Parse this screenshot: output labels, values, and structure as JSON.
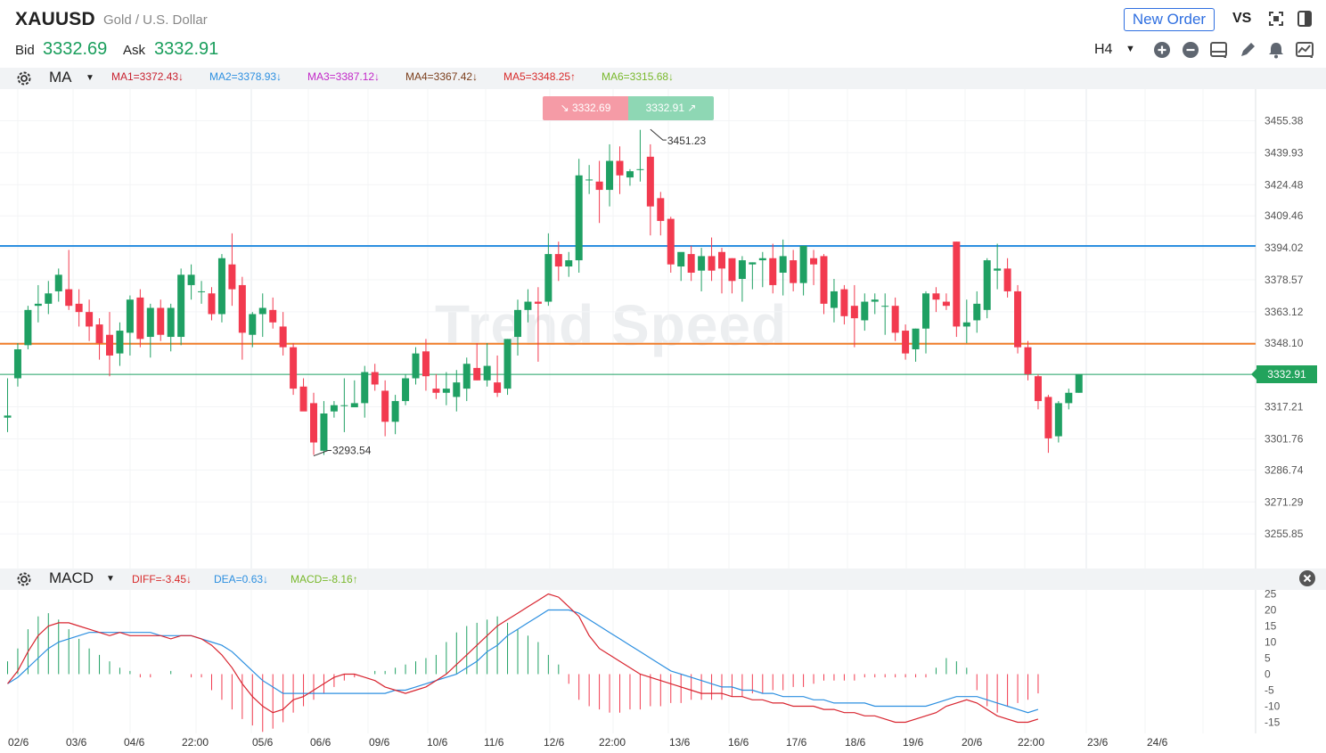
{
  "header": {
    "symbol": "XAUUSD",
    "description": "Gold / U.S. Dollar",
    "bid_label": "Bid",
    "bid_value": "3332.69",
    "ask_label": "Ask",
    "ask_value": "3332.91",
    "new_order_label": "New Order",
    "vs_label": "VS",
    "timeframe": "H4",
    "icons": [
      "fullscreen-icon",
      "layout-icon",
      "zoom-in-icon",
      "zoom-out-icon",
      "chart-type-icon",
      "draw-pencil-icon",
      "alert-bell-icon",
      "indicator-icon"
    ]
  },
  "ma_bar": {
    "name": "MA",
    "items": [
      {
        "label": "MA1=3372.43↓",
        "color": "#c8202e"
      },
      {
        "label": "MA2=3378.93↓",
        "color": "#2c8fe0"
      },
      {
        "label": "MA3=3387.12↓",
        "color": "#c228c8"
      },
      {
        "label": "MA4=3367.42↓",
        "color": "#7a3d1a"
      },
      {
        "label": "MA5=3348.25↑",
        "color": "#d82a2a"
      },
      {
        "label": "MA6=3315.68↓",
        "color": "#78b82a"
      }
    ]
  },
  "macd_bar": {
    "name": "MACD",
    "items": [
      {
        "label": "DIFF=-3.45↓",
        "color": "#d82a2a"
      },
      {
        "label": "DEA=0.63↓",
        "color": "#2c8fe0"
      },
      {
        "label": "MACD=-8.16↑",
        "color": "#78b82a"
      }
    ]
  },
  "badges": {
    "bid": "↘ 3332.69",
    "ask": "3332.91 ↗"
  },
  "watermark": "Trend Speed",
  "price_tag": "3332.91",
  "annotations": {
    "high": "3451.23",
    "low": "3293.54"
  },
  "colors": {
    "up": "#1fa063",
    "down": "#f23a4f",
    "blue_line": "#2c8fe0",
    "orange_line": "#f07d2a",
    "diff_line": "#d8242f",
    "dea_line": "#2c8fe0"
  },
  "chart_data": [
    {
      "type": "candlestick",
      "title": "XAUUSD H4",
      "y_ticks": [
        "3455.38",
        "3439.93",
        "3424.48",
        "3409.46",
        "3394.02",
        "3378.57",
        "3363.12",
        "3348.10",
        "3332.91",
        "3317.21",
        "3301.76",
        "3286.74",
        "3271.29",
        "3255.85"
      ],
      "x_ticks": [
        "02/6",
        "03/6",
        "04/6",
        "22:00",
        "05/6",
        "06/6",
        "09/6",
        "10/6",
        "11/6",
        "12/6",
        "22:00",
        "13/6",
        "16/6",
        "17/6",
        "18/6",
        "19/6",
        "20/6",
        "22:00",
        "23/6",
        "24/6"
      ],
      "ylim": [
        3250,
        3465
      ],
      "horizontal_lines": [
        {
          "value": 3394.9,
          "color": "#2c8fe0"
        },
        {
          "value": 3347.7,
          "color": "#f07d2a"
        },
        {
          "value": 3332.91,
          "color": "#1fa063"
        }
      ],
      "ohlc": [
        [
          3312,
          3331,
          3305,
          3313
        ],
        [
          3331,
          3348,
          3327,
          3345
        ],
        [
          3347,
          3366,
          3345,
          3364
        ],
        [
          3366,
          3376,
          3358,
          3367
        ],
        [
          3367,
          3378,
          3362,
          3372
        ],
        [
          3373,
          3384,
          3368,
          3381
        ],
        [
          3374,
          3393,
          3364,
          3366
        ],
        [
          3367,
          3374,
          3356,
          3363
        ],
        [
          3363,
          3369,
          3349,
          3356
        ],
        [
          3357,
          3360,
          3340,
          3348
        ],
        [
          3352,
          3363,
          3332,
          3342
        ],
        [
          3343,
          3358,
          3337,
          3354
        ],
        [
          3353,
          3371,
          3342,
          3369
        ],
        [
          3370,
          3374,
          3346,
          3350
        ],
        [
          3351,
          3367,
          3341,
          3365
        ],
        [
          3365,
          3369,
          3349,
          3352
        ],
        [
          3351,
          3367,
          3344,
          3365
        ],
        [
          3351,
          3384,
          3347,
          3381
        ],
        [
          3376,
          3386,
          3369,
          3381
        ],
        [
          3373,
          3378,
          3367,
          3373
        ],
        [
          3372,
          3375,
          3359,
          3362
        ],
        [
          3362,
          3391,
          3358,
          3389
        ],
        [
          3386,
          3401,
          3366,
          3374
        ],
        [
          3376,
          3380,
          3340,
          3353
        ],
        [
          3352,
          3363,
          3346,
          3362
        ],
        [
          3362,
          3372,
          3351,
          3365
        ],
        [
          3364,
          3370,
          3355,
          3358
        ],
        [
          3356,
          3363,
          3342,
          3346
        ],
        [
          3346,
          3348,
          3323,
          3326
        ],
        [
          3327,
          3331,
          3316,
          3315
        ],
        [
          3319,
          3324,
          3294,
          3300
        ],
        [
          3296,
          3320,
          3294,
          3314
        ],
        [
          3315,
          3320,
          3312,
          3318
        ],
        [
          3318,
          3331,
          3305,
          3318
        ],
        [
          3317,
          3330,
          3319,
          3319
        ],
        [
          3319,
          3337,
          3312,
          3334
        ],
        [
          3334,
          3338,
          3325,
          3328
        ],
        [
          3325,
          3330,
          3303,
          3310
        ],
        [
          3310,
          3323,
          3304,
          3320
        ],
        [
          3320,
          3333,
          3318,
          3331
        ],
        [
          3331,
          3346,
          3328,
          3343
        ],
        [
          3344,
          3350,
          3325,
          3332
        ],
        [
          3326,
          3333,
          3321,
          3324
        ],
        [
          3324,
          3334,
          3318,
          3326
        ],
        [
          3322,
          3335,
          3315,
          3329
        ],
        [
          3326,
          3341,
          3320,
          3338
        ],
        [
          3336,
          3348,
          3330,
          3330
        ],
        [
          3330,
          3348,
          3327,
          3337
        ],
        [
          3329,
          3342,
          3322,
          3324
        ],
        [
          3326,
          3350,
          3323,
          3350
        ],
        [
          3351,
          3369,
          3342,
          3364
        ],
        [
          3364,
          3374,
          3358,
          3368
        ],
        [
          3368,
          3375,
          3339,
          3367
        ],
        [
          3368,
          3401,
          3366,
          3391
        ],
        [
          3391,
          3397,
          3378,
          3385
        ],
        [
          3385,
          3392,
          3380,
          3388
        ],
        [
          3388,
          3437,
          3382,
          3429
        ],
        [
          3427,
          3434,
          3420,
          3427
        ],
        [
          3426,
          3436,
          3406,
          3422
        ],
        [
          3422,
          3444,
          3414,
          3436
        ],
        [
          3436,
          3443,
          3420,
          3429
        ],
        [
          3428,
          3432,
          3424,
          3431
        ],
        [
          3432,
          3451,
          3426,
          3432
        ],
        [
          3438,
          3444,
          3400,
          3414
        ],
        [
          3418,
          3421,
          3400,
          3407
        ],
        [
          3408,
          3409,
          3382,
          3386
        ],
        [
          3385,
          3390,
          3378,
          3392
        ],
        [
          3391,
          3395,
          3378,
          3382
        ],
        [
          3383,
          3394,
          3373,
          3390
        ],
        [
          3390,
          3399,
          3378,
          3383
        ],
        [
          3392,
          3394,
          3372,
          3384
        ],
        [
          3389,
          3389,
          3372,
          3378
        ],
        [
          3379,
          3390,
          3368,
          3388
        ],
        [
          3386,
          3387,
          3374,
          3387
        ],
        [
          3388,
          3392,
          3375,
          3389
        ],
        [
          3389,
          3396,
          3372,
          3376
        ],
        [
          3382,
          3398,
          3371,
          3390
        ],
        [
          3388,
          3393,
          3373,
          3377
        ],
        [
          3377,
          3394,
          3371,
          3395
        ],
        [
          3389,
          3393,
          3376,
          3386
        ],
        [
          3390,
          3391,
          3362,
          3367
        ],
        [
          3365,
          3379,
          3358,
          3373
        ],
        [
          3374,
          3376,
          3357,
          3361
        ],
        [
          3366,
          3376,
          3346,
          3360
        ],
        [
          3359,
          3372,
          3354,
          3368
        ],
        [
          3368,
          3372,
          3362,
          3369
        ],
        [
          3366,
          3372,
          3352,
          3366
        ],
        [
          3366,
          3370,
          3349,
          3353
        ],
        [
          3354,
          3357,
          3340,
          3343
        ],
        [
          3345,
          3355,
          3339,
          3355
        ],
        [
          3355,
          3373,
          3343,
          3372
        ],
        [
          3372,
          3375,
          3363,
          3369
        ],
        [
          3368,
          3372,
          3364,
          3366
        ],
        [
          3397,
          3397,
          3351,
          3356
        ],
        [
          3356,
          3369,
          3348,
          3358
        ],
        [
          3359,
          3373,
          3353,
          3367
        ],
        [
          3364,
          3389,
          3360,
          3388
        ],
        [
          3383,
          3396,
          3374,
          3384
        ],
        [
          3384,
          3389,
          3370,
          3373
        ],
        [
          3373,
          3376,
          3343,
          3346
        ],
        [
          3346,
          3349,
          3330,
          3333
        ],
        [
          3332,
          3333,
          3316,
          3320
        ],
        [
          3322,
          3323,
          3295,
          3302
        ],
        [
          3303,
          3320,
          3300,
          3319
        ],
        [
          3319,
          3326,
          3316,
          3324
        ],
        [
          3324,
          3333,
          3324,
          3333
        ]
      ]
    },
    {
      "type": "bar+line",
      "title": "MACD",
      "y_ticks": [
        "25",
        "20",
        "15",
        "10",
        "5",
        "0",
        "-5",
        "-10",
        "-15"
      ],
      "ylim": [
        -18,
        27
      ],
      "histogram": [
        4,
        8,
        14,
        18,
        19,
        17,
        14,
        11,
        8,
        6,
        4,
        2,
        1,
        -1,
        -1,
        0,
        1,
        0,
        -1,
        -1,
        -5,
        -8,
        -11,
        -14,
        -16,
        -18,
        -17,
        -15,
        -12,
        -10,
        -8,
        -6,
        -4,
        -2,
        -1,
        0,
        1,
        1,
        2,
        3,
        4,
        5,
        6,
        10,
        13,
        15,
        16,
        17,
        18,
        16,
        14,
        12,
        10,
        6,
        3,
        -3,
        -8,
        -10,
        -11,
        -12,
        -12,
        -11,
        -11,
        -10,
        -10,
        -9,
        -9,
        -8,
        -8,
        -8,
        -8,
        -7,
        -7,
        -6,
        -6,
        -5,
        -5,
        -4,
        -4,
        -3,
        -2,
        -2,
        -2,
        -2,
        -1,
        -1,
        -1,
        -1,
        -1,
        -1,
        -1,
        2,
        5,
        4,
        2,
        -5,
        -10,
        -12,
        -10,
        -9,
        -8,
        -6
      ],
      "diff": [
        -3,
        1,
        7,
        12,
        15,
        16,
        16,
        15,
        14,
        13,
        12,
        13,
        12,
        12,
        12,
        12,
        11,
        12,
        12,
        11,
        9,
        6,
        2,
        -3,
        -7,
        -10,
        -12,
        -11,
        -8,
        -7,
        -5,
        -3,
        -1,
        0,
        0,
        -1,
        -2,
        -4,
        -5,
        -6,
        -5,
        -4,
        -2,
        0,
        3,
        6,
        9,
        12,
        15,
        17,
        19,
        21,
        23,
        25,
        24,
        21,
        18,
        12,
        8,
        6,
        4,
        2,
        0,
        -1,
        -2,
        -3,
        -4,
        -5,
        -6,
        -6,
        -6,
        -7,
        -7,
        -8,
        -8,
        -9,
        -9,
        -10,
        -10,
        -10,
        -11,
        -11,
        -12,
        -12,
        -13,
        -13,
        -14,
        -15,
        -15,
        -14,
        -13,
        -12,
        -10,
        -9,
        -8,
        -9,
        -11,
        -13,
        -14,
        -15,
        -15,
        -14
      ],
      "dea": [
        -3,
        -1,
        2,
        5,
        8,
        10,
        11,
        12,
        13,
        13,
        13,
        13,
        13,
        13,
        13,
        12,
        12,
        12,
        12,
        11,
        10,
        9,
        7,
        4,
        1,
        -2,
        -4,
        -6,
        -6,
        -6,
        -6,
        -6,
        -6,
        -6,
        -6,
        -6,
        -6,
        -6,
        -5,
        -5,
        -4,
        -3,
        -2,
        -1,
        0,
        2,
        4,
        7,
        9,
        12,
        14,
        16,
        18,
        20,
        20,
        20,
        19,
        17,
        15,
        13,
        11,
        9,
        7,
        5,
        3,
        1,
        0,
        -1,
        -2,
        -3,
        -4,
        -4,
        -5,
        -5,
        -6,
        -6,
        -7,
        -7,
        -7,
        -8,
        -8,
        -9,
        -9,
        -9,
        -9,
        -10,
        -10,
        -10,
        -10,
        -10,
        -10,
        -9,
        -8,
        -7,
        -7,
        -7,
        -8,
        -9,
        -10,
        -11,
        -12,
        -11
      ]
    }
  ]
}
